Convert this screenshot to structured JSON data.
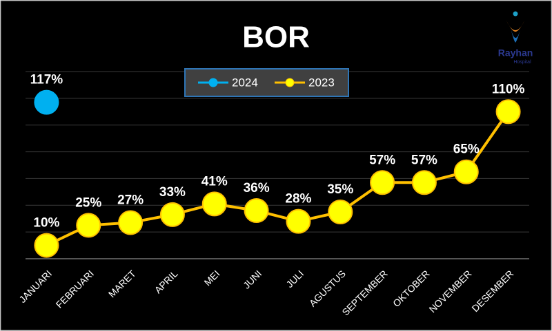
{
  "chart_data": {
    "type": "line",
    "title": "BOR",
    "logo": {
      "name": "Rayhan",
      "subtitle": "Hospital"
    },
    "categories": [
      "JANUARI",
      "FEBRUARI",
      "MARET",
      "APRIL",
      "MEI",
      "JUNI",
      "JULI",
      "AGUSTUS",
      "SEPTEMBER",
      "OKTOBER",
      "NOVEMBER",
      "DESEMBER"
    ],
    "series": [
      {
        "name": "2024",
        "color": "#00b0f0",
        "line_color": "#00b0f0",
        "values": [
          117,
          null,
          null,
          null,
          null,
          null,
          null,
          null,
          null,
          null,
          null,
          null
        ],
        "value_labels": [
          "117%",
          null,
          null,
          null,
          null,
          null,
          null,
          null,
          null,
          null,
          null,
          null
        ]
      },
      {
        "name": "2023",
        "color": "#ffff00",
        "line_color": "#ffc000",
        "values": [
          10,
          25,
          27,
          33,
          41,
          36,
          28,
          35,
          57,
          57,
          65,
          110
        ],
        "value_labels": [
          "10%",
          "25%",
          "27%",
          "33%",
          "41%",
          "36%",
          "28%",
          "35%",
          "57%",
          "57%",
          "65%",
          "110%"
        ]
      }
    ],
    "ylim": [
      0,
      140
    ],
    "yticks": [
      0,
      20,
      40,
      60,
      80,
      100,
      120,
      140
    ],
    "grid": true
  }
}
